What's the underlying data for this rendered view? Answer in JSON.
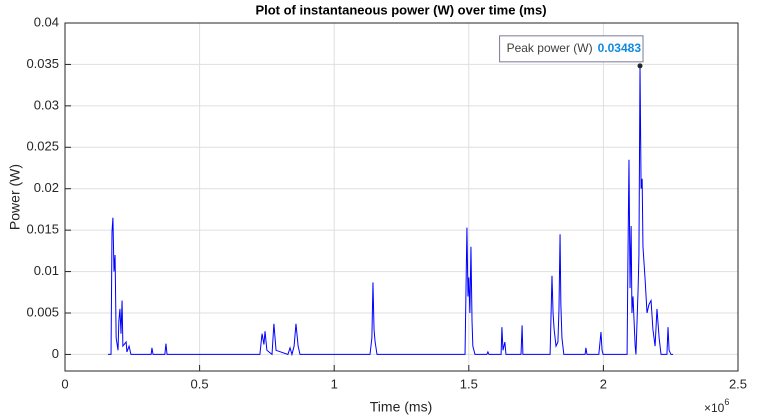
{
  "chart_data": {
    "type": "line",
    "title": "Plot of instantaneous power (W) over time (ms)",
    "x_label": "Time (ms)",
    "y_label": "Power (W)",
    "x_exponent": {
      "base": "×10",
      "power": "6"
    },
    "xlim": [
      0,
      2500000
    ],
    "ylim": [
      -0.002,
      0.04
    ],
    "xticks": [
      0,
      {
        "value": 500000,
        "label": "0.5"
      },
      {
        "value": 1000000,
        "label": "1"
      },
      {
        "value": 1500000,
        "label": "1.5"
      },
      {
        "value": 2000000,
        "label": "2"
      },
      {
        "value": 2500000,
        "label": "2.5"
      }
    ],
    "yticks": [
      0,
      0.005,
      0.01,
      0.015,
      0.02,
      0.025,
      0.03,
      0.035,
      0.04
    ],
    "grid": true,
    "x": [
      160000,
      171000,
      174600,
      178000,
      182000,
      186000,
      190000,
      197000,
      200000,
      204000,
      208000,
      212000,
      215000,
      227000,
      230000,
      238000,
      245000,
      320000,
      323000,
      327000,
      371000,
      375000,
      379000,
      724000,
      732000,
      739000,
      743000,
      750000,
      769000,
      776000,
      784000,
      828000,
      836000,
      843000,
      851000,
      858000,
      866000,
      873000,
      1133000,
      1140000,
      1144000,
      1148000,
      1152000,
      1159000,
      1486000,
      1493000,
      1497000,
      1500000,
      1504000,
      1508000,
      1512000,
      1515000,
      1523000,
      1567000,
      1571000,
      1575000,
      1620000,
      1623000,
      1627000,
      1634000,
      1638000,
      1694000,
      1698000,
      1701000,
      1802000,
      1809000,
      1813000,
      1817000,
      1824000,
      1831000,
      1835000,
      1839000,
      1842000,
      1846000,
      1853000,
      1932000,
      1935000,
      1939000,
      1983000,
      1991000,
      1995000,
      1999000,
      2088000,
      2091000,
      2095000,
      2099000,
      2103000,
      2106000,
      2110000,
      2118000,
      2121000,
      2129000,
      2132000,
      2136000,
      2140000,
      2144000,
      2147000,
      2155000,
      2162000,
      2169000,
      2177000,
      2184000,
      2192000,
      2199000,
      2207000,
      2214000,
      2236000,
      2240000,
      2244000,
      2251000,
      2259000
    ],
    "series": [
      {
        "color": "#0000ff",
        "values": [
          0,
          0,
          0.0148,
          0.0165,
          0.01,
          0.012,
          0.002,
          0.0005,
          0.004,
          0.0055,
          0.0025,
          0.0065,
          0.001,
          0.0015,
          0.0003,
          0.001,
          0,
          0,
          0.0008,
          0,
          0,
          0.0013,
          0,
          0,
          0.0025,
          0.0012,
          0.0028,
          0.0005,
          0,
          0.0037,
          0.0005,
          0,
          0.0008,
          0,
          0.001,
          0.0037,
          0.001,
          0,
          0,
          0.002,
          0.0087,
          0.003,
          0.0015,
          0,
          0,
          0.0153,
          0.007,
          0.0093,
          0.005,
          0.013,
          0.004,
          0.001,
          0,
          0,
          0.0003,
          0,
          0,
          0.0033,
          0.0005,
          0.0015,
          0,
          0,
          0.0035,
          0,
          0,
          0.0095,
          0.005,
          0.003,
          0.001,
          0.0015,
          0.0055,
          0.0145,
          0.006,
          0.002,
          0,
          0,
          0.0008,
          0,
          0,
          0.0027,
          0.0005,
          0,
          0,
          0.011,
          0.0235,
          0.008,
          0.0155,
          0.005,
          0.007,
          0.001,
          0,
          0.008,
          0.012,
          0.03483,
          0.02,
          0.0212,
          0.013,
          0.009,
          0.005,
          0.006,
          0.0065,
          0.003,
          0.001,
          0.0055,
          0.002,
          0,
          0,
          0.0033,
          0.0005,
          0,
          0
        ]
      }
    ],
    "datatip": {
      "label": "Peak power (W)",
      "x": 2136000,
      "value": 0.03483
    }
  }
}
